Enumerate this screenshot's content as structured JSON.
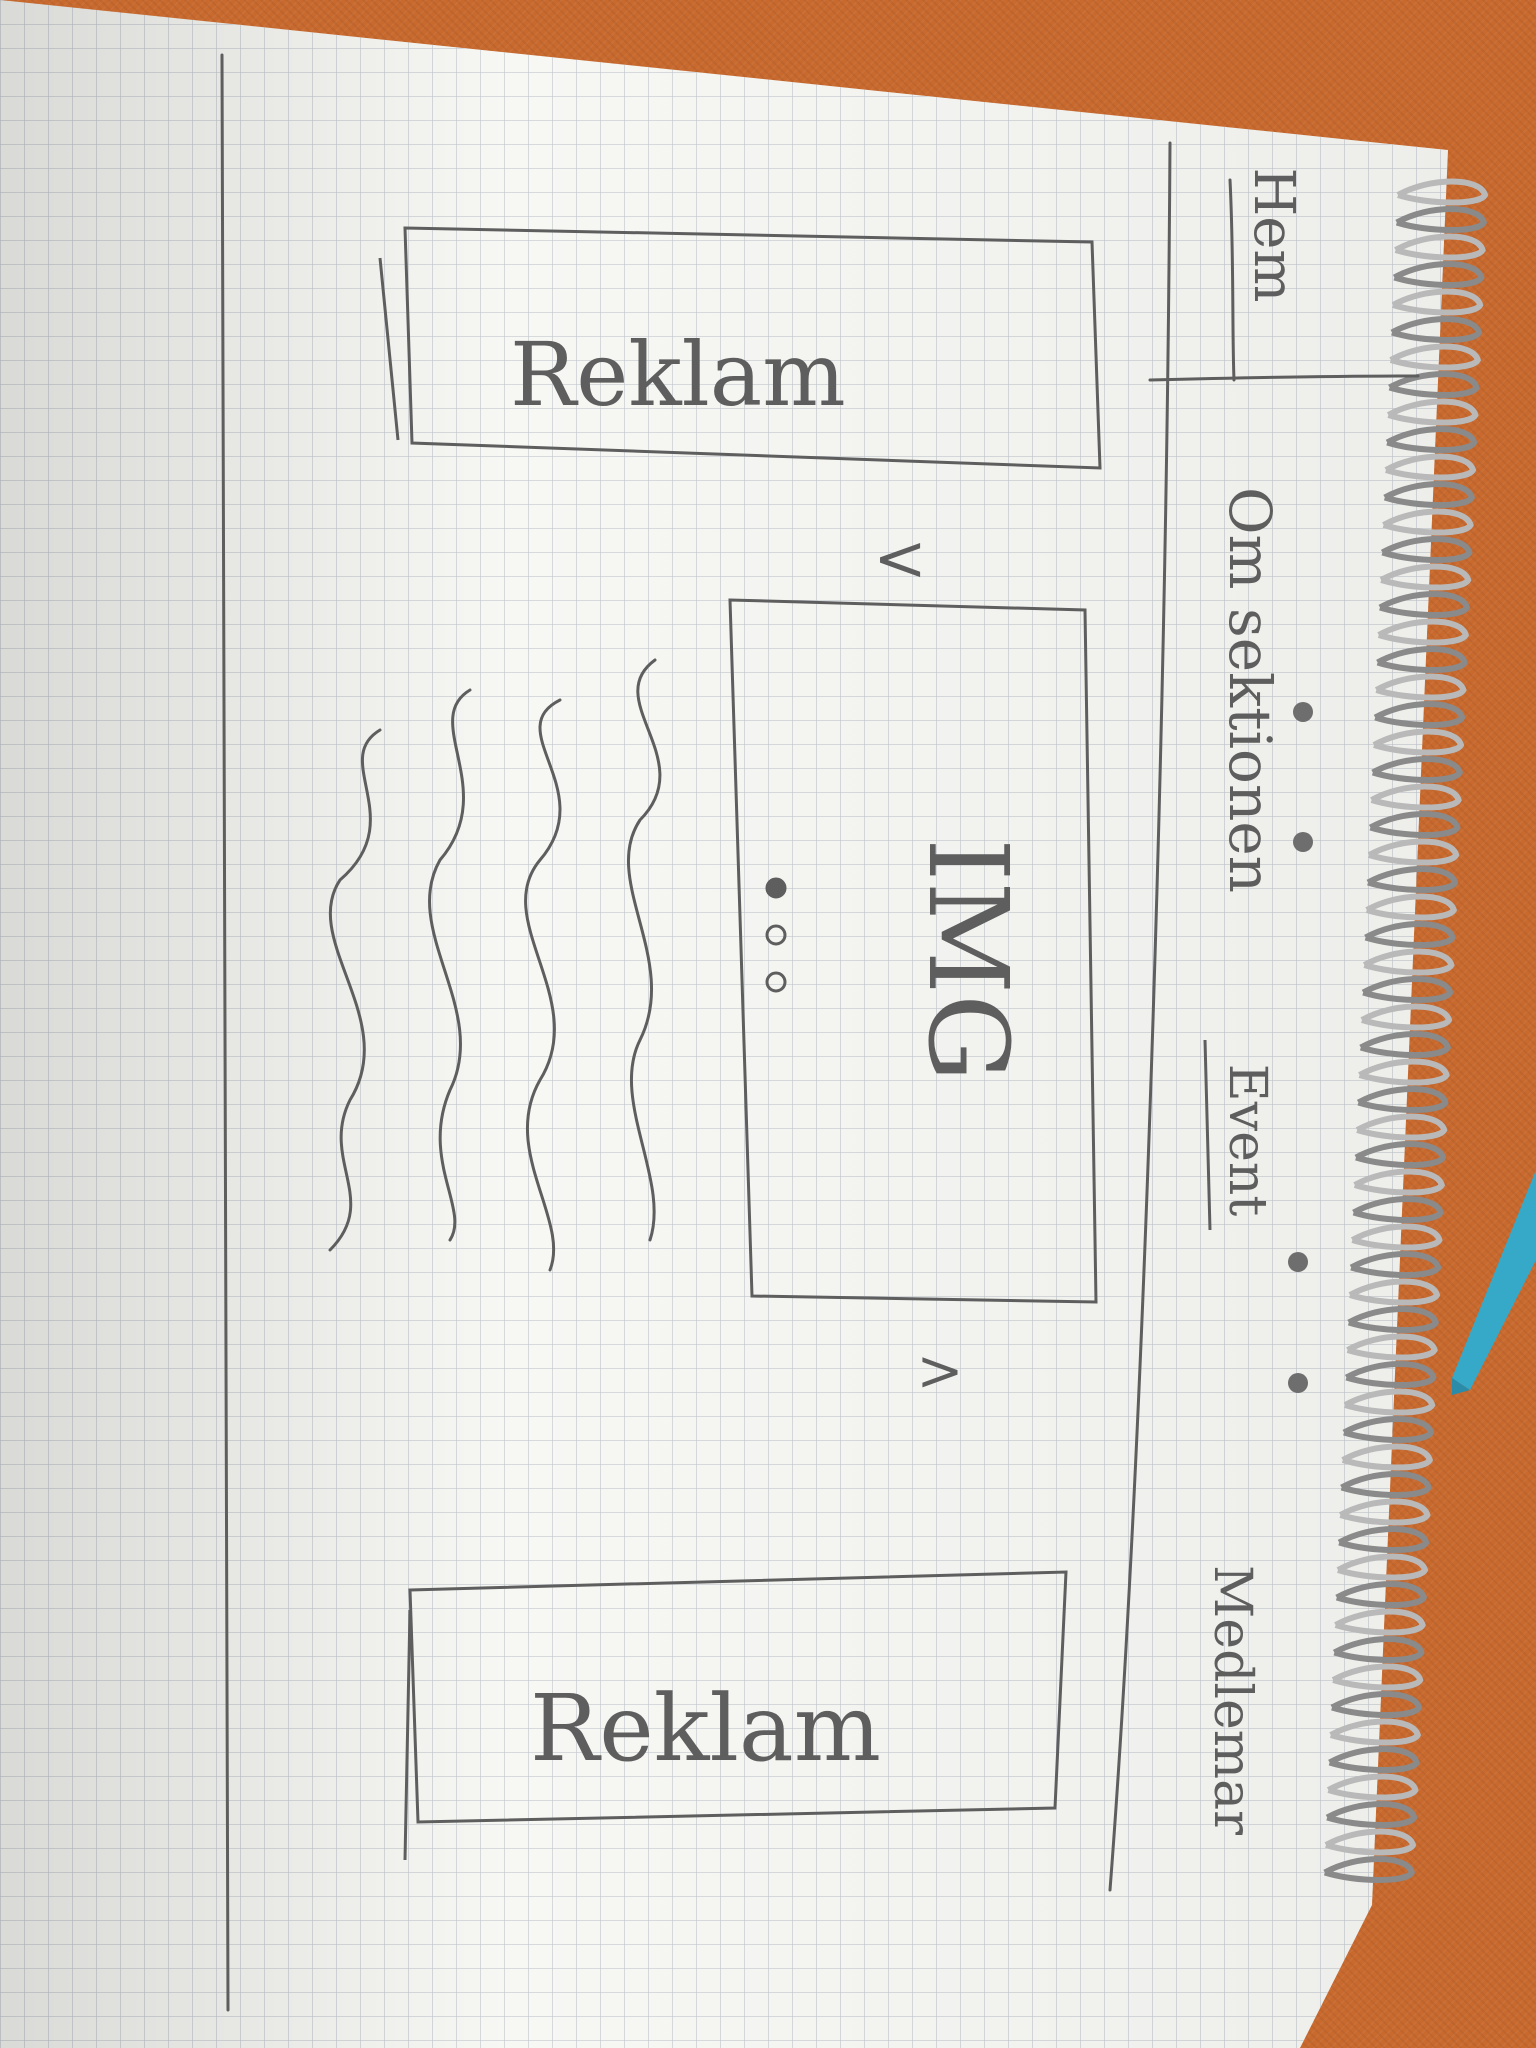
{
  "sketch": {
    "nav": {
      "home": "Hem",
      "about": "Om sektionen",
      "events": "Event",
      "members": "Medlemar"
    },
    "ads": {
      "top": "Reklam",
      "bottom": "Reklam"
    },
    "carousel": {
      "image_label": "IMG",
      "prev_arrow": "<",
      "next_arrow": ">",
      "dot_count": 3,
      "active_dot": 0
    },
    "colors": {
      "table": "#c8692e",
      "paper": "#f7f7f4",
      "grid": "#c3c9cf",
      "pencil": "#5e5e5e",
      "pen": "#36a9c9"
    }
  }
}
